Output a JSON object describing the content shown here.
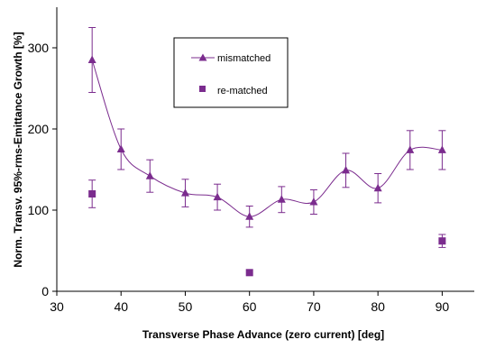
{
  "chart_data": {
    "type": "scatter",
    "xlabel": "Transverse Phase Advance (zero current) [deg]",
    "ylabel": "Norm. Transv. 95%-rms-Emittance Growth [%]",
    "xlim": [
      30,
      95
    ],
    "ylim": [
      0,
      350
    ],
    "x_ticks": [
      "30",
      "40",
      "50",
      "60",
      "70",
      "80",
      "90"
    ],
    "y_ticks": [
      "0",
      "100",
      "200",
      "300"
    ],
    "legend_position": "top-center",
    "grid": false,
    "series": [
      {
        "name": "mismatched",
        "style": "line-with-triangle-markers",
        "color": "#7b2c8e",
        "points": [
          {
            "x": 35.5,
            "y": 285,
            "err": 40
          },
          {
            "x": 40,
            "y": 175,
            "err": 25
          },
          {
            "x": 44.5,
            "y": 142,
            "err": 20
          },
          {
            "x": 50,
            "y": 121,
            "err": 17
          },
          {
            "x": 55,
            "y": 116,
            "err": 16
          },
          {
            "x": 60,
            "y": 92,
            "err": 13
          },
          {
            "x": 65,
            "y": 113,
            "err": 16
          },
          {
            "x": 70,
            "y": 110,
            "err": 15
          },
          {
            "x": 75,
            "y": 149,
            "err": 21
          },
          {
            "x": 80,
            "y": 127,
            "err": 18
          },
          {
            "x": 85,
            "y": 174,
            "err": 24
          },
          {
            "x": 90,
            "y": 174,
            "err": 24
          }
        ]
      },
      {
        "name": "re-matched",
        "style": "square-markers",
        "color": "#7b2c8e",
        "points": [
          {
            "x": 35.5,
            "y": 120,
            "err": 17
          },
          {
            "x": 60,
            "y": 23,
            "err": 0
          },
          {
            "x": 90,
            "y": 62,
            "err": 8
          }
        ]
      }
    ]
  }
}
